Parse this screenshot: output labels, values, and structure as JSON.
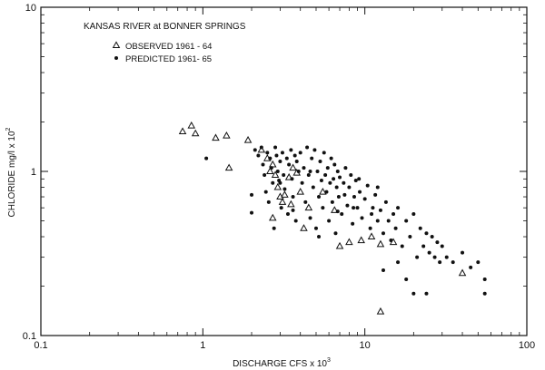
{
  "chart_data": {
    "type": "scatter",
    "title": "KANSAS RIVER at BONNER SPRINGS",
    "xlabel": "DISCHARGE CFS x 10",
    "xlabel_sup": "3",
    "ylabel": "CHLORIDE mg/l x 10",
    "ylabel_sup": "2",
    "x_scale": "log",
    "y_scale": "log",
    "xlim": [
      0.1,
      100
    ],
    "ylim": [
      0.1,
      10
    ],
    "x_ticks": [
      {
        "value": 0.1,
        "label": "0.1"
      },
      {
        "value": 1,
        "label": "1"
      },
      {
        "value": 10,
        "label": "10"
      },
      {
        "value": 100,
        "label": "100"
      }
    ],
    "y_ticks": [
      {
        "value": 0.1,
        "label": "0.1"
      },
      {
        "value": 1,
        "label": "1"
      },
      {
        "value": 10,
        "label": "10"
      }
    ],
    "grid": false,
    "legend_position": "top-left",
    "series": [
      {
        "name": "OBSERVED 1961 - 64",
        "marker": "triangle",
        "points": [
          [
            0.75,
            1.75
          ],
          [
            0.85,
            1.9
          ],
          [
            0.9,
            1.7
          ],
          [
            1.2,
            1.6
          ],
          [
            1.4,
            1.65
          ],
          [
            1.45,
            1.05
          ],
          [
            1.9,
            1.55
          ],
          [
            2.3,
            1.35
          ],
          [
            2.5,
            1.2
          ],
          [
            2.6,
            1.0
          ],
          [
            2.7,
            1.1
          ],
          [
            2.8,
            0.95
          ],
          [
            2.9,
            0.8
          ],
          [
            3.0,
            0.7
          ],
          [
            3.1,
            0.65
          ],
          [
            3.2,
            0.72
          ],
          [
            3.4,
            0.92
          ],
          [
            3.5,
            0.63
          ],
          [
            3.6,
            1.05
          ],
          [
            3.8,
            0.98
          ],
          [
            4.0,
            0.75
          ],
          [
            4.2,
            0.45
          ],
          [
            2.7,
            0.52
          ],
          [
            4.5,
            0.6
          ],
          [
            5.5,
            0.75
          ],
          [
            6.5,
            0.58
          ],
          [
            7.0,
            0.35
          ],
          [
            8.0,
            0.37
          ],
          [
            9.5,
            0.38
          ],
          [
            11.0,
            0.4
          ],
          [
            12.5,
            0.36
          ],
          [
            15.0,
            0.37
          ],
          [
            40.0,
            0.24
          ],
          [
            12.5,
            0.14
          ]
        ]
      },
      {
        "name": "PREDICTED 1961- 65",
        "marker": "dot",
        "points": [
          [
            1.05,
            1.2
          ],
          [
            2.0,
            0.72
          ],
          [
            2.0,
            0.56
          ],
          [
            2.1,
            1.35
          ],
          [
            2.2,
            1.25
          ],
          [
            2.3,
            1.4
          ],
          [
            2.35,
            1.1
          ],
          [
            2.4,
            0.95
          ],
          [
            2.45,
            0.75
          ],
          [
            2.5,
            1.3
          ],
          [
            2.55,
            0.65
          ],
          [
            2.6,
            1.2
          ],
          [
            2.65,
            1.05
          ],
          [
            2.7,
            0.85
          ],
          [
            2.75,
            0.45
          ],
          [
            2.8,
            1.4
          ],
          [
            2.85,
            1.25
          ],
          [
            2.9,
            1.0
          ],
          [
            2.95,
            0.88
          ],
          [
            3.0,
            1.15
          ],
          [
            3.05,
            0.6
          ],
          [
            3.1,
            1.3
          ],
          [
            3.15,
            0.95
          ],
          [
            3.2,
            0.78
          ],
          [
            3.3,
            1.2
          ],
          [
            3.35,
            0.55
          ],
          [
            3.4,
            1.1
          ],
          [
            3.5,
            1.35
          ],
          [
            3.55,
            0.9
          ],
          [
            3.6,
            0.7
          ],
          [
            3.7,
            1.25
          ],
          [
            3.75,
            0.5
          ],
          [
            3.8,
            1.15
          ],
          [
            3.9,
            1.0
          ],
          [
            4.0,
            1.3
          ],
          [
            4.1,
            0.85
          ],
          [
            4.2,
            1.05
          ],
          [
            4.3,
            0.65
          ],
          [
            4.4,
            1.4
          ],
          [
            4.5,
            0.95
          ],
          [
            4.6,
            0.52
          ],
          [
            4.7,
            1.2
          ],
          [
            4.8,
            0.8
          ],
          [
            4.9,
            1.35
          ],
          [
            5.0,
            0.45
          ],
          [
            5.1,
            1.0
          ],
          [
            5.2,
            0.7
          ],
          [
            5.3,
            1.15
          ],
          [
            5.4,
            0.88
          ],
          [
            5.5,
            0.6
          ],
          [
            5.6,
            1.3
          ],
          [
            5.7,
            0.95
          ],
          [
            5.8,
            0.75
          ],
          [
            5.9,
            1.05
          ],
          [
            6.0,
            0.5
          ],
          [
            6.1,
            0.85
          ],
          [
            6.2,
            1.2
          ],
          [
            6.3,
            0.65
          ],
          [
            6.4,
            0.9
          ],
          [
            6.5,
            1.1
          ],
          [
            6.6,
            0.42
          ],
          [
            6.7,
            0.8
          ],
          [
            6.8,
            1.0
          ],
          [
            6.9,
            0.7
          ],
          [
            7.0,
            0.92
          ],
          [
            7.2,
            0.55
          ],
          [
            7.4,
            0.85
          ],
          [
            7.6,
            1.05
          ],
          [
            7.8,
            0.62
          ],
          [
            8.0,
            0.8
          ],
          [
            8.2,
            0.95
          ],
          [
            8.4,
            0.48
          ],
          [
            8.6,
            0.7
          ],
          [
            8.8,
            0.88
          ],
          [
            9.0,
            0.6
          ],
          [
            9.3,
            0.75
          ],
          [
            9.6,
            0.52
          ],
          [
            10.0,
            0.68
          ],
          [
            10.4,
            0.82
          ],
          [
            10.8,
            0.45
          ],
          [
            11.2,
            0.6
          ],
          [
            11.6,
            0.72
          ],
          [
            12.0,
            0.5
          ],
          [
            12.5,
            0.58
          ],
          [
            13.0,
            0.42
          ],
          [
            13.5,
            0.65
          ],
          [
            14.0,
            0.5
          ],
          [
            14.5,
            0.38
          ],
          [
            15.0,
            0.55
          ],
          [
            15.5,
            0.45
          ],
          [
            16.0,
            0.6
          ],
          [
            17.0,
            0.35
          ],
          [
            18.0,
            0.5
          ],
          [
            19.0,
            0.4
          ],
          [
            20.0,
            0.55
          ],
          [
            21.0,
            0.3
          ],
          [
            22.0,
            0.45
          ],
          [
            23.0,
            0.35
          ],
          [
            24.0,
            0.42
          ],
          [
            25.0,
            0.32
          ],
          [
            26.0,
            0.4
          ],
          [
            27.0,
            0.3
          ],
          [
            28.0,
            0.37
          ],
          [
            29.0,
            0.28
          ],
          [
            30.0,
            0.35
          ],
          [
            32.0,
            0.3
          ],
          [
            35.0,
            0.28
          ],
          [
            40.0,
            0.32
          ],
          [
            45.0,
            0.26
          ],
          [
            50.0,
            0.28
          ],
          [
            55.0,
            0.22
          ],
          [
            13.0,
            0.25
          ],
          [
            16.0,
            0.28
          ],
          [
            18.0,
            0.22
          ],
          [
            20.0,
            0.18
          ],
          [
            24.0,
            0.18
          ],
          [
            55.0,
            0.18
          ],
          [
            3.0,
            0.85
          ],
          [
            3.6,
            0.58
          ],
          [
            4.6,
            1.0
          ],
          [
            5.2,
            0.4
          ],
          [
            6.8,
            0.57
          ],
          [
            7.5,
            0.72
          ],
          [
            8.5,
            0.6
          ],
          [
            9.2,
            0.9
          ],
          [
            11.0,
            0.55
          ],
          [
            12.0,
            0.8
          ]
        ]
      }
    ]
  }
}
